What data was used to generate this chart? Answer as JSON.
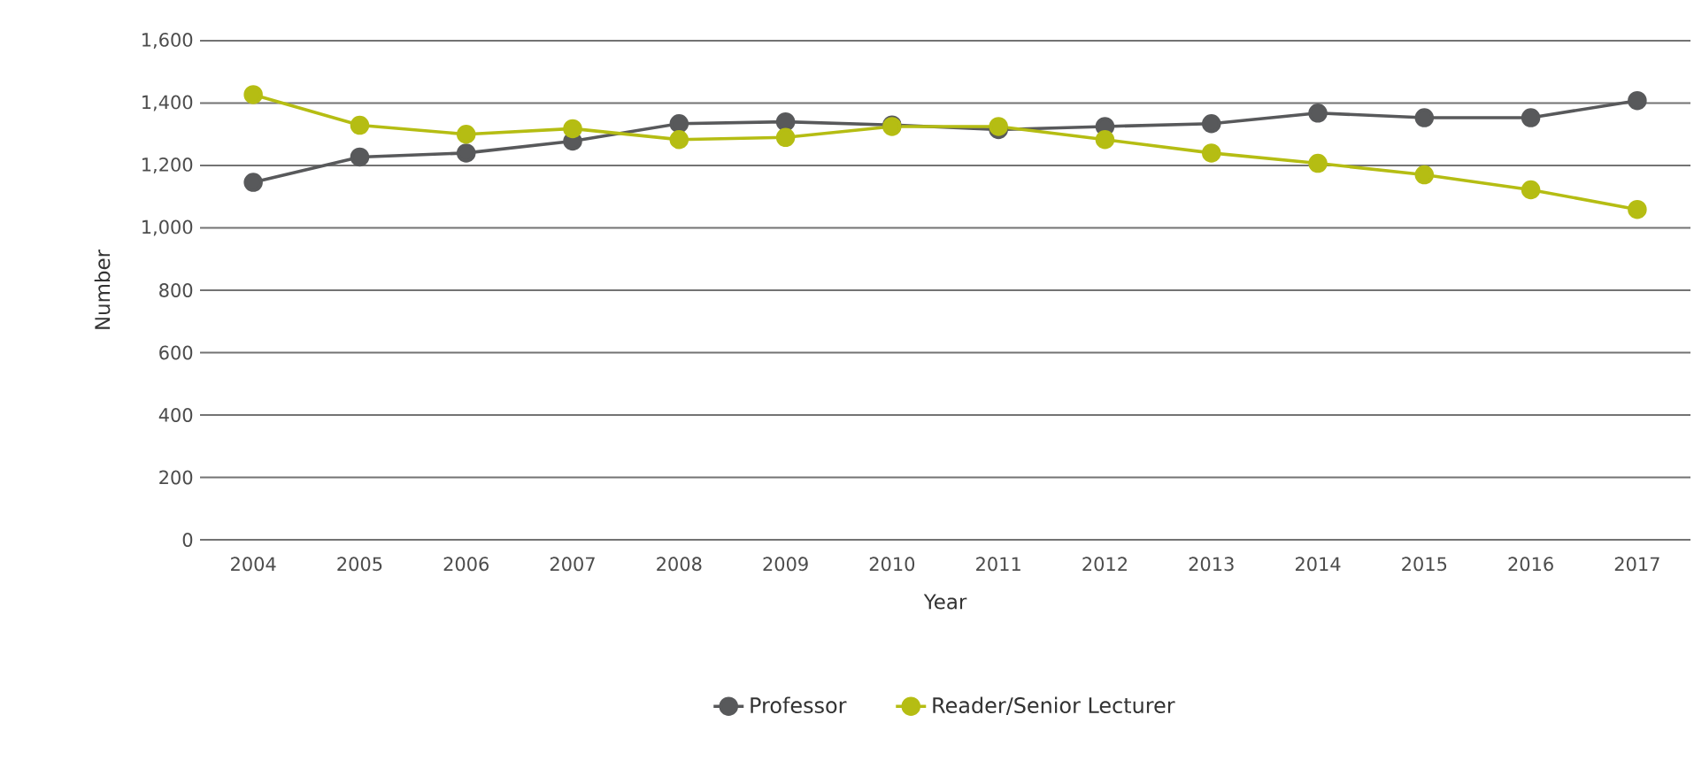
{
  "chart_data": {
    "type": "line",
    "xlabel": "Year",
    "ylabel": "Number",
    "categories": [
      "2004",
      "2005",
      "2006",
      "2007",
      "2008",
      "2009",
      "2010",
      "2011",
      "2012",
      "2013",
      "2014",
      "2015",
      "2016",
      "2017"
    ],
    "series": [
      {
        "name": "Professor",
        "color": "#58595b",
        "values": [
          1146,
          1227,
          1240,
          1278,
          1334,
          1340,
          1330,
          1315,
          1325,
          1334,
          1368,
          1353,
          1353,
          1408
        ]
      },
      {
        "name": "Reader/Senior Lecturer",
        "color": "#b5bd13",
        "values": [
          1427,
          1329,
          1300,
          1318,
          1283,
          1290,
          1325,
          1325,
          1283,
          1240,
          1207,
          1170,
          1122,
          1059
        ]
      }
    ],
    "ylim": [
      0,
      1600
    ],
    "yticks": [
      0,
      200,
      400,
      600,
      800,
      {
        "value": 1000,
        "label": "1,000"
      },
      {
        "value": 1200,
        "label": "1,200"
      },
      {
        "value": 1400,
        "label": "1,400"
      },
      {
        "value": 1600,
        "label": "1,600"
      }
    ],
    "grid": "y",
    "legend": "bottom",
    "marker": "circle",
    "line_style": "solid"
  }
}
